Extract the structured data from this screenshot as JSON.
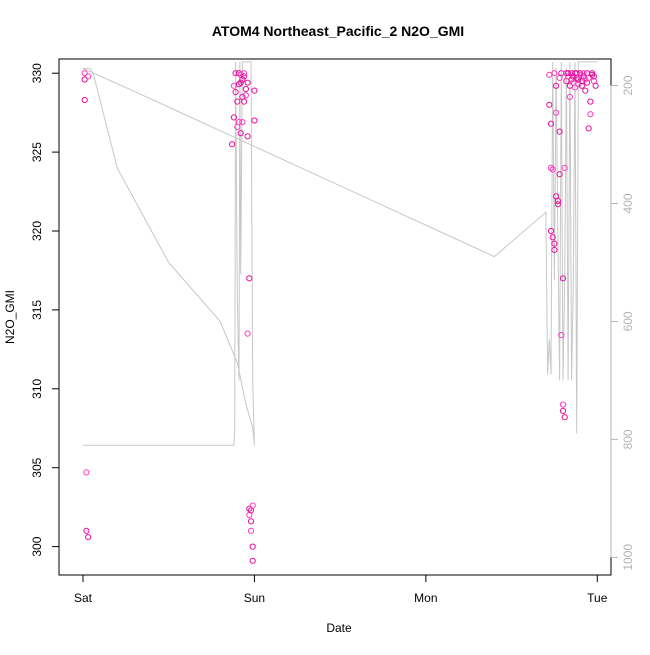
{
  "chart_data": {
    "type": "scatter",
    "title": "ATOM4 Northeast_Pacific_2 N2O_GMI",
    "xlabel": "Date",
    "ylabel": "N2O_GMI",
    "x_tick_labels": [
      "Sat",
      "Sun",
      "Mon",
      "Tue"
    ],
    "xlim_days": [
      -0.14,
      3.08
    ],
    "ylim": [
      298.2,
      330.9
    ],
    "y_ticks": [
      300,
      305,
      310,
      315,
      320,
      325,
      330
    ],
    "y2_ticks": [
      200,
      400,
      600,
      800,
      1000
    ],
    "y2lim": [
      1030,
      155
    ],
    "grid": false,
    "legend": "none",
    "colors": {
      "points": "#e8119b",
      "points_alt": "#ff3dc2",
      "pressure_line": "#c7c7c7",
      "axis": "#000000",
      "secondary_axis": "#b4b4b4"
    },
    "series": [
      {
        "type": "points",
        "x_days": [
          0.01,
          0.01,
          0.01,
          0.02,
          0.02,
          0.03,
          0.03,
          0.87,
          0.88,
          0.88,
          0.89,
          0.89,
          0.9,
          0.9,
          0.91,
          0.91,
          0.91,
          0.92,
          0.92,
          0.92,
          0.93,
          0.93,
          0.93,
          0.94,
          0.94,
          0.94,
          0.95,
          0.95,
          0.96,
          0.96,
          0.96,
          0.97,
          0.97,
          0.97,
          0.98,
          0.98,
          0.98,
          0.99,
          0.99,
          0.99,
          1.0,
          1.0,
          2.72,
          2.72,
          2.73,
          2.73,
          2.73,
          2.74,
          2.74,
          2.75,
          2.75,
          2.75,
          2.76,
          2.76,
          2.76,
          2.77,
          2.77,
          2.78,
          2.78,
          2.78,
          2.79,
          2.79,
          2.8,
          2.8,
          2.8,
          2.81,
          2.81,
          2.82,
          2.82,
          2.83,
          2.83,
          2.84,
          2.84,
          2.85,
          2.85,
          2.86,
          2.86,
          2.87,
          2.87,
          2.88,
          2.88,
          2.89,
          2.89,
          2.9,
          2.9,
          2.91,
          2.91,
          2.92,
          2.92,
          2.93,
          2.93,
          2.94,
          2.94,
          2.95,
          2.95,
          2.96,
          2.96,
          2.97,
          2.97,
          2.98,
          2.98,
          2.99
        ],
        "y": [
          330.0,
          329.6,
          328.3,
          304.7,
          301.0,
          300.6,
          329.8,
          325.5,
          327.2,
          329.2,
          330.0,
          328.8,
          326.6,
          328.2,
          329.3,
          326.9,
          330.0,
          326.2,
          329.9,
          329.4,
          328.5,
          326.9,
          329.6,
          329.8,
          330.0,
          328.2,
          329.0,
          328.6,
          326.0,
          329.4,
          313.5,
          317.0,
          302.4,
          302.0,
          301.6,
          302.3,
          301.0,
          300.0,
          299.1,
          302.6,
          327.0,
          328.9,
          329.9,
          328.0,
          326.8,
          324.0,
          320.0,
          319.6,
          323.9,
          319.2,
          318.8,
          330.0,
          329.2,
          322.2,
          327.5,
          321.7,
          321.9,
          329.7,
          323.6,
          326.3,
          313.4,
          330.0,
          317.0,
          309.0,
          308.6,
          308.2,
          324.0,
          330.0,
          329.5,
          329.8,
          330.0,
          329.2,
          328.5,
          329.6,
          330.0,
          329.4,
          329.8,
          330.0,
          329.1,
          329.7,
          330.0,
          329.3,
          329.6,
          330.0,
          329.9,
          329.2,
          329.5,
          330.0,
          329.8,
          328.9,
          329.6,
          330.0,
          329.4,
          329.7,
          326.5,
          328.2,
          327.4,
          329.9,
          330.0,
          329.5,
          329.8,
          329.2
        ]
      },
      {
        "type": "line",
        "axis": "pressure",
        "x_days": [
          0.0,
          0.02,
          0.03,
          0.04,
          0.1,
          0.3,
          0.6,
          0.88,
          0.885,
          0.89,
          0.9,
          0.91,
          0.915,
          0.92,
          0.93,
          0.94,
          0.95,
          0.96,
          0.965,
          0.97,
          0.98,
          0.99,
          1.0,
          0.99,
          0.98,
          0.97,
          0.95,
          0.9,
          0.8,
          0.5,
          0.2,
          0.06,
          0.04,
          0.02,
          0.0,
          0.3,
          0.6,
          0.9,
          1.2,
          1.5,
          1.8,
          2.1,
          2.4,
          2.7,
          2.71,
          2.72,
          2.73,
          2.74,
          2.75,
          2.76,
          2.77,
          2.78,
          2.79,
          2.8,
          2.81,
          2.82,
          2.83,
          2.84,
          2.85,
          2.86,
          2.87,
          2.88,
          2.89,
          2.9,
          2.91,
          2.92,
          2.93,
          2.94,
          2.95,
          2.96,
          2.97,
          2.98,
          2.99,
          3.0
        ],
        "y_hpa": [
          810,
          810,
          810,
          810,
          810,
          810,
          810,
          810,
          790,
          160,
          560,
          700,
          160,
          520,
          160,
          160,
          160,
          160,
          160,
          160,
          160,
          700,
          810,
          780,
          770,
          760,
          740,
          670,
          600,
          500,
          340,
          180,
          171,
          171,
          171,
          210,
          250,
          290,
          330,
          370,
          410,
          450,
          490,
          415,
          690,
          630,
          690,
          160,
          530,
          170,
          460,
          700,
          160,
          700,
          530,
          170,
          700,
          160,
          700,
          530,
          160,
          790,
          160,
          160,
          160,
          160,
          160,
          160,
          160,
          160,
          160,
          160,
          160,
          160
        ]
      }
    ]
  }
}
